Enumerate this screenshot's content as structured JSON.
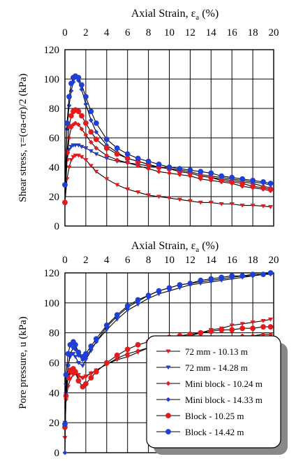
{
  "chart_data": [
    {
      "type": "line",
      "xlabel_prefix": "Axial Strain, ε",
      "xlabel_sub": "a",
      "xlabel_suffix": " (%)",
      "ylabel": "Shear stress, τ=(σa-σr)/2 (kPa)",
      "xlim": [
        0,
        20
      ],
      "ylim": [
        0,
        120
      ],
      "xticks": [
        0,
        2,
        4,
        6,
        8,
        10,
        12,
        14,
        16,
        18,
        20
      ],
      "yticks": [
        0,
        20,
        40,
        60,
        80,
        100,
        120
      ],
      "grid": true,
      "series": [
        {
          "name": "72 mm - 10.13 m",
          "color": "#e41a1c",
          "marker": "tri-down",
          "x": [
            0,
            0.2,
            0.4,
            0.6,
            0.8,
            1,
            1.3,
            1.6,
            2,
            2.5,
            3,
            4,
            5,
            6,
            7,
            8,
            9,
            10,
            11,
            12,
            13,
            14,
            15,
            16,
            17,
            18,
            19,
            19.7
          ],
          "y": [
            16,
            32,
            40,
            45,
            47,
            48,
            48,
            47,
            45,
            41,
            37,
            32,
            28,
            25,
            23,
            21,
            20,
            19,
            18,
            17,
            16,
            16,
            15,
            15,
            14,
            14,
            13.5,
            13
          ]
        },
        {
          "name": "72 mm - 14.28 m",
          "color": "#1f3fd6",
          "marker": "tri-down",
          "x": [
            0,
            0.2,
            0.4,
            0.6,
            0.8,
            1,
            1.3,
            1.6,
            2,
            2.5,
            3,
            4,
            5,
            6,
            7,
            8,
            9,
            10,
            11,
            12,
            13,
            14,
            15,
            16,
            17,
            18,
            19,
            19.7
          ],
          "y": [
            28,
            45,
            52,
            54,
            55,
            55,
            55,
            54,
            53,
            51,
            49,
            46,
            44,
            43,
            42,
            41,
            40,
            39,
            38,
            37,
            35,
            34,
            33,
            32,
            31,
            30,
            29,
            28
          ]
        },
        {
          "name": "Mini block - 10.24 m",
          "color": "#e41a1c",
          "marker": "diamond",
          "x": [
            0,
            0.2,
            0.4,
            0.6,
            0.8,
            1,
            1.3,
            1.6,
            2,
            2.5,
            3,
            4,
            5,
            6,
            7,
            8,
            9,
            10,
            11,
            12,
            13,
            14,
            15,
            16,
            17,
            18,
            19,
            19.7
          ],
          "y": [
            16,
            45,
            60,
            67,
            69,
            70,
            69,
            66,
            62,
            57,
            53,
            48,
            45,
            43,
            41,
            39,
            37,
            36,
            35,
            34,
            32,
            31,
            30,
            29,
            27,
            26,
            25,
            24
          ]
        },
        {
          "name": "Mini block - 14.33 m",
          "color": "#1f3fd6",
          "marker": "diamond",
          "x": [
            0,
            0.2,
            0.4,
            0.6,
            0.8,
            1,
            1.3,
            1.6,
            2,
            2.5,
            3,
            4,
            5,
            6,
            7,
            8,
            9,
            10,
            11,
            12,
            13,
            14,
            15,
            16,
            17,
            18,
            19,
            19.7
          ],
          "y": [
            28,
            66,
            82,
            92,
            98,
            101,
            99,
            93,
            83,
            72,
            64,
            55,
            50,
            46,
            44,
            42,
            40,
            39,
            37,
            36,
            34,
            33,
            32,
            31,
            30,
            29,
            27,
            26
          ]
        },
        {
          "name": "Block - 10.25 m",
          "color": "#e41a1c",
          "marker": "circle",
          "x": [
            0,
            0.2,
            0.4,
            0.6,
            0.8,
            1,
            1.3,
            1.6,
            2,
            2.5,
            3,
            4,
            5,
            6,
            7,
            8,
            9,
            10,
            11,
            12,
            13,
            14,
            15,
            16,
            17,
            18,
            19,
            19.7
          ],
          "y": [
            16,
            50,
            68,
            75,
            78,
            79,
            78,
            75,
            70,
            64,
            59,
            53,
            49,
            46,
            44,
            42,
            40,
            39,
            37,
            36,
            34,
            33,
            31,
            30,
            29,
            27,
            26,
            25
          ]
        },
        {
          "name": "Block - 14.42 m",
          "color": "#1f3fd6",
          "marker": "circle",
          "x": [
            0,
            0.2,
            0.4,
            0.6,
            0.8,
            1,
            1.3,
            1.6,
            2,
            2.5,
            3,
            4,
            5,
            6,
            7,
            8,
            9,
            10,
            11,
            12,
            13,
            14,
            15,
            16,
            17,
            18,
            19,
            19.7
          ],
          "y": [
            28,
            70,
            88,
            97,
            101,
            102,
            101,
            96,
            88,
            78,
            70,
            59,
            53,
            49,
            46,
            44,
            42,
            40,
            39,
            38,
            37,
            36,
            34,
            33,
            32,
            31,
            30,
            29
          ]
        }
      ]
    },
    {
      "type": "line",
      "xlabel_prefix": "Axial Strain, ε",
      "xlabel_sub": "a",
      "xlabel_suffix": " (%)",
      "ylabel": "Pore pressure, u (kPa)",
      "xlim": [
        0,
        20
      ],
      "ylim": [
        0,
        120
      ],
      "xticks": [
        0,
        2,
        4,
        6,
        8,
        10,
        12,
        14,
        16,
        18,
        20
      ],
      "yticks": [
        0,
        20,
        40,
        60,
        80,
        100,
        120
      ],
      "grid": true,
      "legend_position": "bottom-right",
      "series": [
        {
          "name": "72 mm  - 10.13 m",
          "color": "#e41a1c",
          "marker": "tri-down",
          "x": [
            0,
            0.1,
            0.3,
            0.5,
            0.8,
            1,
            1.3,
            1.7,
            2,
            2.5,
            3,
            4,
            5,
            6,
            7,
            8,
            9,
            10,
            11,
            12,
            13,
            14,
            15,
            16,
            17,
            18,
            19,
            19.7
          ],
          "y": [
            10,
            35,
            44,
            49,
            52,
            53,
            52,
            50,
            51,
            53,
            55,
            59,
            62,
            64,
            67,
            70,
            72,
            74,
            76,
            78,
            80,
            82,
            83,
            85,
            86,
            87,
            88,
            89
          ]
        },
        {
          "name": "72 mm  - 14.28 m",
          "color": "#1f3fd6",
          "marker": "tri-down",
          "x": [
            0,
            0.1,
            0.3,
            0.5,
            0.8,
            1,
            1.3,
            1.7,
            2,
            2.5,
            3,
            4,
            5,
            6,
            7,
            8,
            9,
            10,
            11,
            12,
            13,
            14,
            15,
            16,
            17,
            18,
            19,
            19.7
          ],
          "y": [
            20,
            45,
            58,
            64,
            66,
            64,
            60,
            58,
            62,
            68,
            74,
            82,
            89,
            95,
            99,
            103,
            106,
            108,
            110,
            112,
            113,
            114,
            115,
            116,
            117,
            118,
            119,
            119
          ]
        },
        {
          "name": "Mini block - 10.24 m",
          "color": "#e41a1c",
          "marker": "diamond",
          "x": [
            0,
            0.1,
            0.3,
            0.5,
            0.8,
            1,
            1.3,
            1.7,
            2,
            2.5,
            3,
            4,
            5,
            6,
            7,
            8,
            9,
            10,
            11,
            12,
            13,
            14,
            15,
            16,
            17,
            18,
            19,
            19.7
          ],
          "y": [
            18,
            40,
            50,
            53,
            54,
            53,
            51,
            50,
            51,
            53,
            55,
            59,
            63,
            66,
            68,
            70,
            71,
            72,
            73,
            74,
            75,
            76,
            77,
            77,
            78,
            78,
            79,
            79
          ]
        },
        {
          "name": "Mini block  - 14.33 m",
          "color": "#1f3fd6",
          "marker": "diamond",
          "x": [
            0,
            0.1,
            0.3,
            0.5,
            0.8,
            1,
            1.3,
            1.7,
            2,
            2.5,
            3,
            4,
            5,
            6,
            7,
            8,
            9,
            10,
            11,
            12,
            13,
            14,
            15,
            16,
            17,
            18,
            19,
            19.7
          ],
          "y": [
            0,
            40,
            58,
            66,
            70,
            69,
            65,
            62,
            64,
            69,
            74,
            84,
            91,
            97,
            101,
            105,
            108,
            110,
            112,
            113,
            114,
            115,
            116,
            117,
            118,
            118,
            119,
            120
          ]
        },
        {
          "name": "Block - 10.25 m",
          "color": "#e41a1c",
          "marker": "circle",
          "x": [
            0,
            0.1,
            0.3,
            0.5,
            0.8,
            1,
            1.3,
            1.7,
            2,
            2.5,
            3,
            4,
            5,
            6,
            7,
            8,
            9,
            10,
            11,
            12,
            13,
            14,
            15,
            16,
            17,
            18,
            19,
            19.7
          ],
          "y": [
            17,
            38,
            50,
            55,
            56,
            54,
            48,
            44,
            46,
            50,
            54,
            60,
            65,
            69,
            72,
            74,
            76,
            77,
            78,
            79,
            80,
            81,
            82,
            82,
            83,
            83,
            84,
            84
          ]
        },
        {
          "name": "Block - 14.42 m",
          "color": "#1f3fd6",
          "marker": "circle",
          "x": [
            0,
            0.1,
            0.3,
            0.5,
            0.8,
            1,
            1.3,
            1.7,
            2,
            2.5,
            3,
            4,
            5,
            6,
            7,
            8,
            9,
            10,
            11,
            12,
            13,
            14,
            15,
            16,
            17,
            18,
            19,
            19.7
          ],
          "y": [
            19,
            52,
            66,
            72,
            74,
            72,
            67,
            64,
            66,
            71,
            76,
            85,
            92,
            98,
            102,
            105,
            108,
            110,
            112,
            113,
            115,
            116,
            117,
            118,
            118,
            119,
            119,
            120
          ]
        }
      ]
    }
  ]
}
